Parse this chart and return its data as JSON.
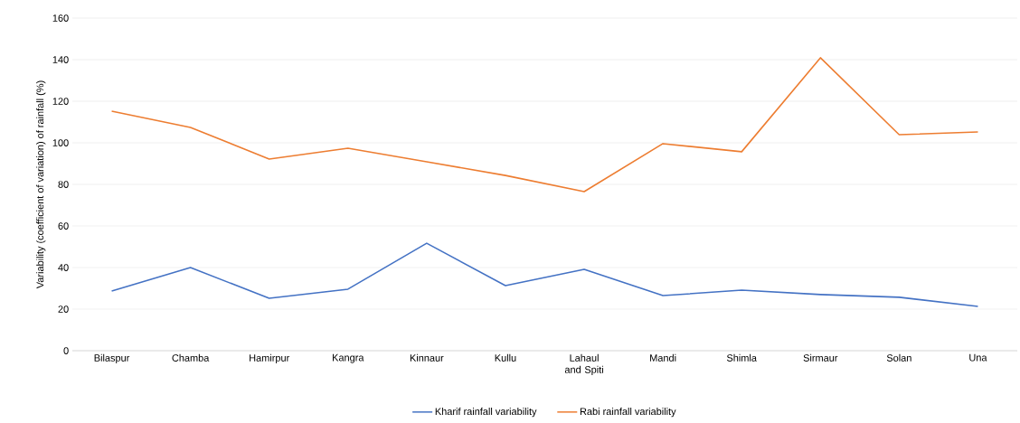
{
  "chart_data": {
    "type": "line",
    "ylabel": "Variability (coefficient of variation) of rainfall (%)",
    "categories": [
      "Bilaspur",
      "Chamba",
      "Hamirpur",
      "Kangra",
      "Kinnaur",
      "Kullu",
      "Lahaul and Spiti",
      "Mandi",
      "Shimla",
      "Sirmaur",
      "Solan",
      "Una"
    ],
    "series": [
      {
        "name": "Kharif rainfall variability",
        "color": "#4472c4",
        "values": [
          28.7,
          40,
          25.2,
          29.6,
          51.7,
          31.3,
          39.1,
          26.5,
          29.1,
          27,
          25.7,
          21.3
        ]
      },
      {
        "name": "Rabi rainfall variability",
        "color": "#ed7d31",
        "values": [
          115.2,
          107.4,
          92.2,
          97.4,
          90.9,
          84.3,
          76.5,
          99.6,
          95.7,
          140.9,
          103.9,
          105.2
        ]
      }
    ],
    "ylim": [
      0,
      160
    ],
    "yticks": [
      0,
      20,
      40,
      60,
      80,
      100,
      120,
      140,
      160
    ],
    "grid": "y",
    "legend": "bottom",
    "marker": "none",
    "line_style": "solid"
  }
}
